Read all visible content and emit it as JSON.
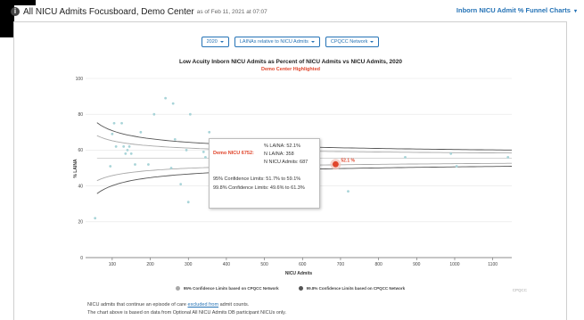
{
  "header": {
    "title": "All NICU Admits Focusboard, Demo Center",
    "date": "as of Feb 11, 2021 at 07:07",
    "link": "Inborn NICU Admit % Funnel Charts"
  },
  "filters": [
    {
      "label": "2020"
    },
    {
      "label": "LAINAs relative to NICU Admits"
    },
    {
      "label": "CPQCC Network"
    }
  ],
  "chart_data": {
    "type": "scatter",
    "title": "Low Acuity Inborn NICU Admits as Percent of NICU Admits vs NICU Admits, 2020",
    "subtitle": "Demo Center Highlighted",
    "xlabel": "NICU Admits",
    "ylabel": "% LAINA",
    "xlim": [
      30,
      1150
    ],
    "ylim": [
      0,
      100
    ],
    "xticks": [
      100,
      200,
      300,
      400,
      500,
      600,
      700,
      800,
      900,
      1000,
      1100
    ],
    "yticks": [
      0,
      20,
      40,
      60,
      80,
      100
    ],
    "grid": "horizontal",
    "legend_position": "bottom",
    "points": [
      {
        "x": 55,
        "y": 22
      },
      {
        "x": 95,
        "y": 51
      },
      {
        "x": 100,
        "y": 69
      },
      {
        "x": 105,
        "y": 75
      },
      {
        "x": 110,
        "y": 62
      },
      {
        "x": 125,
        "y": 75
      },
      {
        "x": 130,
        "y": 62
      },
      {
        "x": 135,
        "y": 58
      },
      {
        "x": 140,
        "y": 60
      },
      {
        "x": 145,
        "y": 62
      },
      {
        "x": 150,
        "y": 58
      },
      {
        "x": 160,
        "y": 52
      },
      {
        "x": 175,
        "y": 70
      },
      {
        "x": 195,
        "y": 52
      },
      {
        "x": 210,
        "y": 80
      },
      {
        "x": 240,
        "y": 89
      },
      {
        "x": 255,
        "y": 50
      },
      {
        "x": 260,
        "y": 86
      },
      {
        "x": 265,
        "y": 66
      },
      {
        "x": 280,
        "y": 41
      },
      {
        "x": 295,
        "y": 60
      },
      {
        "x": 300,
        "y": 31
      },
      {
        "x": 305,
        "y": 80
      },
      {
        "x": 340,
        "y": 59
      },
      {
        "x": 345,
        "y": 56
      },
      {
        "x": 355,
        "y": 70
      },
      {
        "x": 360,
        "y": 47
      },
      {
        "x": 380,
        "y": 50
      },
      {
        "x": 395,
        "y": 53
      },
      {
        "x": 405,
        "y": 64
      },
      {
        "x": 415,
        "y": 55
      },
      {
        "x": 450,
        "y": 52
      },
      {
        "x": 470,
        "y": 57
      },
      {
        "x": 520,
        "y": 54
      },
      {
        "x": 545,
        "y": 48
      },
      {
        "x": 560,
        "y": 57
      },
      {
        "x": 625,
        "y": 55
      },
      {
        "x": 720,
        "y": 37
      },
      {
        "x": 870,
        "y": 56
      },
      {
        "x": 990,
        "y": 58
      },
      {
        "x": 1005,
        "y": 51
      },
      {
        "x": 1140,
        "y": 56
      }
    ],
    "highlight": {
      "name": "Demo NICU 6752",
      "x": 687,
      "y": 52.1,
      "label": "52.1 %"
    },
    "overall_mean": 55.5,
    "confidence_bands": [
      {
        "name": "95% Confidence Limits based on CPQCC Network",
        "color": "#a9a9a9",
        "z": 1.96
      },
      {
        "name": "99.8% Confidence Limits based on CPQCC Network",
        "color": "#555555",
        "z": 3.09
      }
    ]
  },
  "tooltip": {
    "name": "Demo NICU 6752:",
    "pct": "% LAINA: 52.1%",
    "n_laina": "N LAINA: 358",
    "n_admits": "N NICU Admits: 687",
    "cl95": "95% Confidence Limits: 51.7% to 59.1%",
    "cl998": "99.8% Confidence Limits: 49.6% to 61.3%"
  },
  "credit": "CPQCC",
  "notes": {
    "line1_pre": "NICU admits that continue an episode of care ",
    "line1_link": "excluded from",
    "line1_post": " admit counts.",
    "line2": "The chart above is based on data from Optional All NICU Admits DB participant NICUs only."
  },
  "colors": {
    "accent": "#2573b6",
    "highlight": "#e0452b",
    "point": "#a8d4d8"
  }
}
